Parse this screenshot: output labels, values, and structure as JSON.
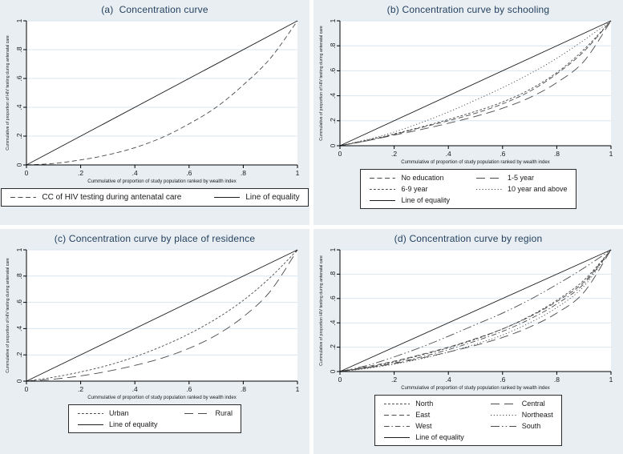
{
  "styles": {
    "panel_bg": "#e8eef2",
    "plot_bg": "#ffffff",
    "grid_color": "#d8e6f0",
    "axis_color": "#000000",
    "curve_color": "#4a4a4a",
    "equality_color": "#1c1c1c",
    "title_color": "#25415f",
    "legend_border": "#2a2a2a",
    "legend_bg": "#ffffff"
  },
  "chart_data": [
    {
      "id": "a",
      "type": "line",
      "title": "(a)  Concentration curve",
      "xlabel": "Cummulative of proportion of study population ranked by wealth index",
      "ylabel": "Cummulative of proportion of HIV testing during antenatal care",
      "xlim": [
        0,
        1
      ],
      "ylim": [
        0,
        1
      ],
      "grid": "horizontal",
      "legend_position": "bottom",
      "xticks": {
        "values": [
          0,
          0.2,
          0.4,
          0.6,
          0.8,
          1
        ],
        "labels": [
          "0",
          ".2",
          ".4",
          ".6",
          ".8",
          "1"
        ]
      },
      "yticks": {
        "values": [
          0,
          0.2,
          0.4,
          0.6,
          0.8,
          1
        ],
        "labels": [
          "0",
          ".2",
          ".4",
          ".6",
          ".8",
          "1"
        ]
      },
      "x": [
        0,
        0.1,
        0.2,
        0.3,
        0.4,
        0.5,
        0.6,
        0.7,
        0.8,
        0.9,
        1
      ],
      "series": [
        {
          "name": "CC of HIV testing during antenatal care",
          "dash": "dash-medium",
          "values": [
            0,
            0.01,
            0.035,
            0.07,
            0.12,
            0.19,
            0.285,
            0.4,
            0.555,
            0.74,
            1
          ]
        },
        {
          "name": "Line of equality",
          "dash": "solid",
          "values": [
            0,
            0.1,
            0.2,
            0.3,
            0.4,
            0.5,
            0.6,
            0.7,
            0.8,
            0.9,
            1
          ]
        }
      ]
    },
    {
      "id": "b",
      "type": "line",
      "title": "(b) Concentration curve by schooling",
      "xlabel": "Cummulative of proportion of study population ranked by wealth index",
      "ylabel": "Cummulative of proportion of HIV testing during antenatal care",
      "xlim": [
        0,
        1
      ],
      "ylim": [
        0,
        1
      ],
      "grid": "horizontal",
      "legend_position": "bottom",
      "xticks": {
        "values": [
          0,
          0.2,
          0.4,
          0.6,
          0.8,
          1
        ],
        "labels": [
          "0",
          ".2",
          ".4",
          ".6",
          ".8",
          "1"
        ]
      },
      "yticks": {
        "values": [
          0,
          0.2,
          0.4,
          0.6,
          0.8,
          1
        ],
        "labels": [
          "0",
          ".2",
          ".4",
          ".6",
          ".8",
          "1"
        ]
      },
      "x": [
        0,
        0.1,
        0.2,
        0.3,
        0.4,
        0.5,
        0.6,
        0.7,
        0.8,
        0.9,
        1
      ],
      "series": [
        {
          "name": "No education",
          "dash": "dash-medium",
          "values": [
            0,
            0.04,
            0.09,
            0.145,
            0.2,
            0.26,
            0.335,
            0.435,
            0.575,
            0.755,
            1
          ]
        },
        {
          "name": "1-5 year",
          "dash": "dash-long",
          "values": [
            0,
            0.04,
            0.085,
            0.13,
            0.18,
            0.235,
            0.3,
            0.385,
            0.505,
            0.675,
            1
          ]
        },
        {
          "name": "6-9 year",
          "dash": "dash-short",
          "values": [
            0,
            0.045,
            0.095,
            0.15,
            0.21,
            0.275,
            0.35,
            0.45,
            0.585,
            0.77,
            1
          ]
        },
        {
          "name": "10 year and above",
          "dash": "dot",
          "values": [
            0,
            0.05,
            0.11,
            0.185,
            0.27,
            0.365,
            0.465,
            0.575,
            0.7,
            0.845,
            1
          ]
        },
        {
          "name": "Line of equality",
          "dash": "solid",
          "values": [
            0,
            0.1,
            0.2,
            0.3,
            0.4,
            0.5,
            0.6,
            0.7,
            0.8,
            0.9,
            1
          ]
        }
      ]
    },
    {
      "id": "c",
      "type": "line",
      "title": "(c) Concentration curve by place of residence",
      "xlabel": "Cummulative of proportion of study population ranked by wealth index",
      "ylabel": "Cummulative of proportion of HIV testing during antenatal care",
      "xlim": [
        0,
        1
      ],
      "ylim": [
        0,
        1
      ],
      "grid": "horizontal",
      "legend_position": "bottom",
      "xticks": {
        "values": [
          0,
          0.2,
          0.4,
          0.6,
          0.8,
          1
        ],
        "labels": [
          "0",
          ".2",
          ".4",
          ".6",
          ".8",
          "1"
        ]
      },
      "yticks": {
        "values": [
          0,
          0.2,
          0.4,
          0.6,
          0.8,
          1
        ],
        "labels": [
          "0",
          ".2",
          ".4",
          ".6",
          ".8",
          "1"
        ]
      },
      "x": [
        0,
        0.1,
        0.2,
        0.3,
        0.4,
        0.5,
        0.6,
        0.7,
        0.8,
        0.9,
        1
      ],
      "series": [
        {
          "name": "Urban",
          "dash": "dash-short",
          "values": [
            0,
            0.03,
            0.07,
            0.12,
            0.185,
            0.265,
            0.36,
            0.475,
            0.615,
            0.79,
            1
          ]
        },
        {
          "name": "Rural",
          "dash": "dash-long",
          "values": [
            0,
            0.015,
            0.04,
            0.075,
            0.12,
            0.175,
            0.25,
            0.35,
            0.49,
            0.685,
            1
          ]
        },
        {
          "name": "Line of equality",
          "dash": "solid",
          "values": [
            0,
            0.1,
            0.2,
            0.3,
            0.4,
            0.5,
            0.6,
            0.7,
            0.8,
            0.9,
            1
          ]
        }
      ]
    },
    {
      "id": "d",
      "type": "line",
      "title": "(d) Concentration curve by region",
      "xlabel": "Cummulative of proportion of study population ranked by wealth index",
      "ylabel": "Cummulative of proportion HIV testing during antenatal care",
      "xlim": [
        0,
        1
      ],
      "ylim": [
        0,
        1
      ],
      "grid": "horizontal",
      "legend_position": "bottom",
      "xticks": {
        "values": [
          0,
          0.2,
          0.4,
          0.6,
          0.8,
          1
        ],
        "labels": [
          "0",
          ".2",
          ".4",
          ".6",
          ".8",
          "1"
        ]
      },
      "yticks": {
        "values": [
          0,
          0.2,
          0.4,
          0.6,
          0.8,
          1
        ],
        "labels": [
          "0",
          ".2",
          ".4",
          ".6",
          ".8",
          "1"
        ]
      },
      "x": [
        0,
        0.1,
        0.2,
        0.3,
        0.4,
        0.5,
        0.6,
        0.7,
        0.8,
        0.9,
        1
      ],
      "series": [
        {
          "name": "North",
          "dash": "dash-short",
          "values": [
            0,
            0.035,
            0.08,
            0.135,
            0.195,
            0.265,
            0.35,
            0.455,
            0.585,
            0.75,
            1
          ]
        },
        {
          "name": "Central",
          "dash": "dash-long",
          "values": [
            0,
            0.03,
            0.065,
            0.11,
            0.16,
            0.215,
            0.28,
            0.365,
            0.48,
            0.65,
            1
          ]
        },
        {
          "name": "East",
          "dash": "dash-medium",
          "values": [
            0,
            0.04,
            0.085,
            0.14,
            0.2,
            0.27,
            0.35,
            0.45,
            0.575,
            0.735,
            1
          ]
        },
        {
          "name": "Northeast",
          "dash": "dot",
          "values": [
            0,
            0.025,
            0.06,
            0.105,
            0.16,
            0.225,
            0.3,
            0.4,
            0.525,
            0.7,
            1
          ]
        },
        {
          "name": "West",
          "dash": "dash-dot",
          "values": [
            0,
            0.03,
            0.07,
            0.12,
            0.18,
            0.25,
            0.33,
            0.43,
            0.555,
            0.72,
            1
          ]
        },
        {
          "name": "South",
          "dash": "dash-dot-dot",
          "values": [
            0,
            0.05,
            0.12,
            0.2,
            0.29,
            0.385,
            0.48,
            0.59,
            0.715,
            0.85,
            1
          ]
        },
        {
          "name": "Line of equality",
          "dash": "solid",
          "values": [
            0,
            0.1,
            0.2,
            0.3,
            0.4,
            0.5,
            0.6,
            0.7,
            0.8,
            0.9,
            1
          ]
        }
      ]
    }
  ]
}
